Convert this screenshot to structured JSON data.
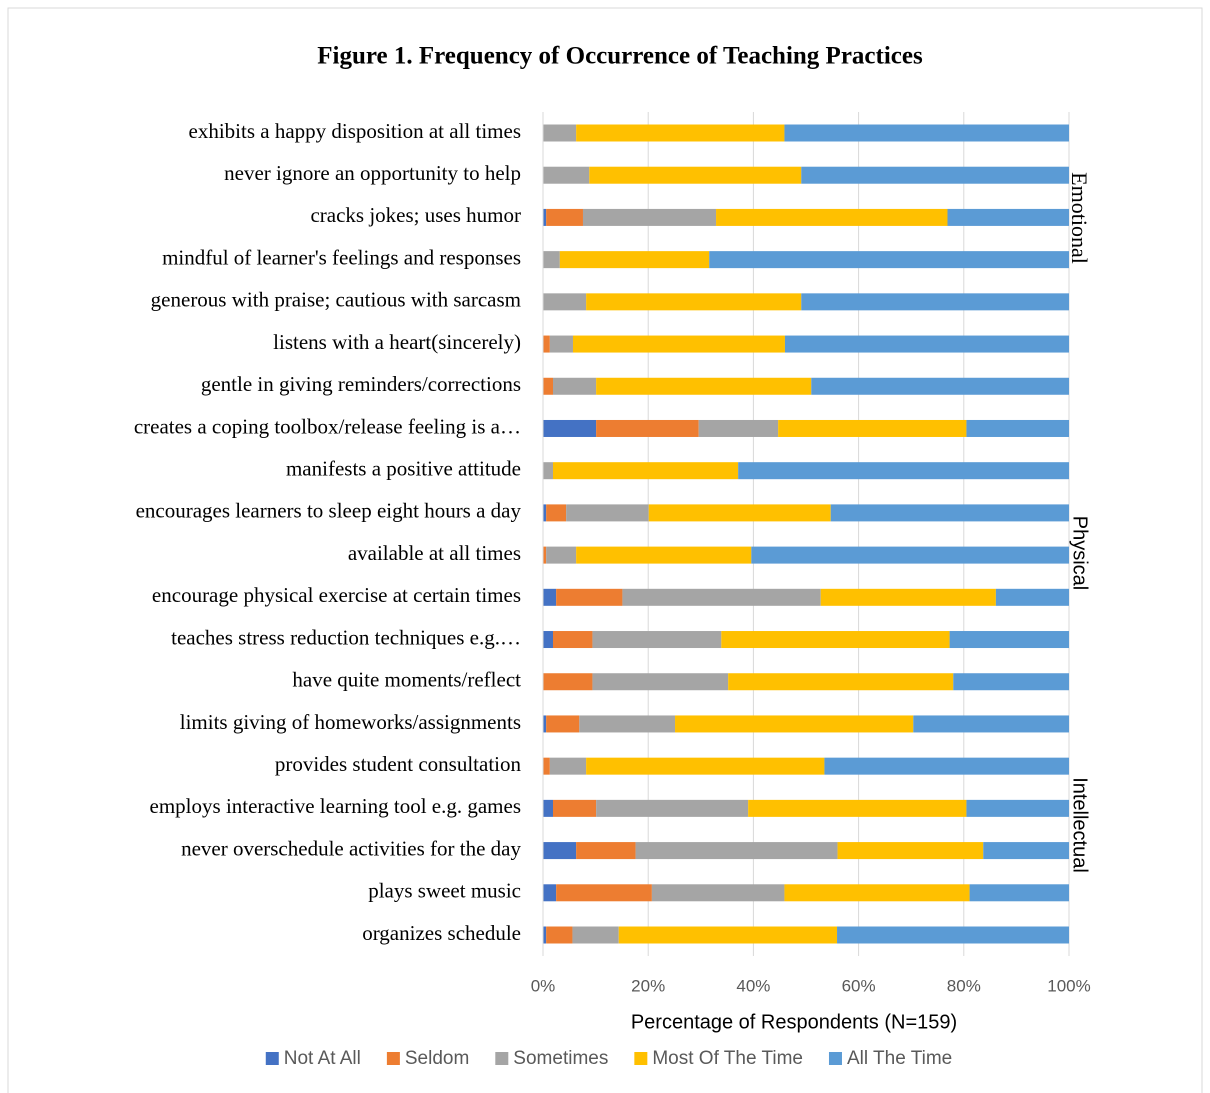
{
  "chart_data": {
    "type": "bar",
    "orientation": "horizontal",
    "stacked": true,
    "title": "Figure 1. Frequency of Occurrence of Teaching Practices",
    "x_label": "Percentage of Respondents (N=159)",
    "categories": [
      "exhibits a happy disposition at all times",
      "never ignore an opportunity to help",
      "cracks jokes; uses humor",
      "mindful of learner's feelings and responses",
      "generous with praise; cautious with sarcasm",
      "listens with a heart(sincerely)",
      "gentle in giving reminders/corrections",
      "creates a coping toolbox/release feeling is a…",
      "manifests a positive attitude",
      "encourages learners to sleep eight hours a day",
      "available at all times",
      "encourage physical exercise at certain times",
      "teaches stress reduction techniques e.g.…",
      "have quite moments/reflect",
      "limits giving of homeworks/assignments",
      "provides student consultation",
      "employs interactive learning tool e.g. games",
      "never overschedule activities for the day",
      "plays sweet music",
      "organizes schedule"
    ],
    "series": [
      {
        "name": "Not At All",
        "color": "#4472c4",
        "values": [
          0,
          0,
          0.6,
          0,
          0,
          0,
          0,
          10.1,
          0,
          0.6,
          0,
          2.5,
          1.9,
          0,
          0.6,
          0,
          1.9,
          6.3,
          2.5,
          0.6
        ]
      },
      {
        "name": "Seldom",
        "color": "#ed7d31",
        "values": [
          0,
          0,
          7.0,
          0,
          0,
          1.3,
          1.9,
          19.5,
          0,
          3.8,
          0.6,
          12.6,
          7.5,
          9.4,
          6.3,
          1.3,
          8.2,
          11.3,
          18.2,
          5.0
        ]
      },
      {
        "name": "Sometimes",
        "color": "#a5a5a5",
        "values": [
          6.3,
          8.8,
          25.3,
          3.2,
          8.2,
          4.4,
          8.2,
          15.1,
          1.9,
          15.7,
          5.7,
          37.7,
          24.5,
          25.8,
          18.2,
          6.9,
          28.9,
          38.4,
          25.2,
          8.8
        ]
      },
      {
        "name": "Most Of The Time",
        "color": "#ffc000",
        "values": [
          39.6,
          40.3,
          44.0,
          28.4,
          40.9,
          40.3,
          40.9,
          35.8,
          35.2,
          34.6,
          33.3,
          33.3,
          43.4,
          42.8,
          45.3,
          45.3,
          41.5,
          27.7,
          35.2,
          41.5
        ]
      },
      {
        "name": "All The Time",
        "color": "#5b9bd5",
        "values": [
          54.1,
          50.9,
          23.1,
          68.4,
          50.9,
          54.0,
          49.0,
          19.5,
          62.9,
          45.3,
          60.4,
          13.9,
          22.7,
          22.0,
          29.6,
          46.5,
          19.5,
          16.3,
          18.9,
          44.1
        ]
      }
    ],
    "xlim": [
      0,
      100
    ],
    "xticks": [
      {
        "value": 0,
        "label": "0%"
      },
      {
        "value": 20,
        "label": "20%"
      },
      {
        "value": 40,
        "label": "40%"
      },
      {
        "value": 60,
        "label": "60%"
      },
      {
        "value": 80,
        "label": "80%"
      },
      {
        "value": 100,
        "label": "100%"
      }
    ],
    "grid": true,
    "legend": "bottom",
    "annotations": [
      "Emotional",
      "Physical",
      "Intellectual"
    ]
  }
}
